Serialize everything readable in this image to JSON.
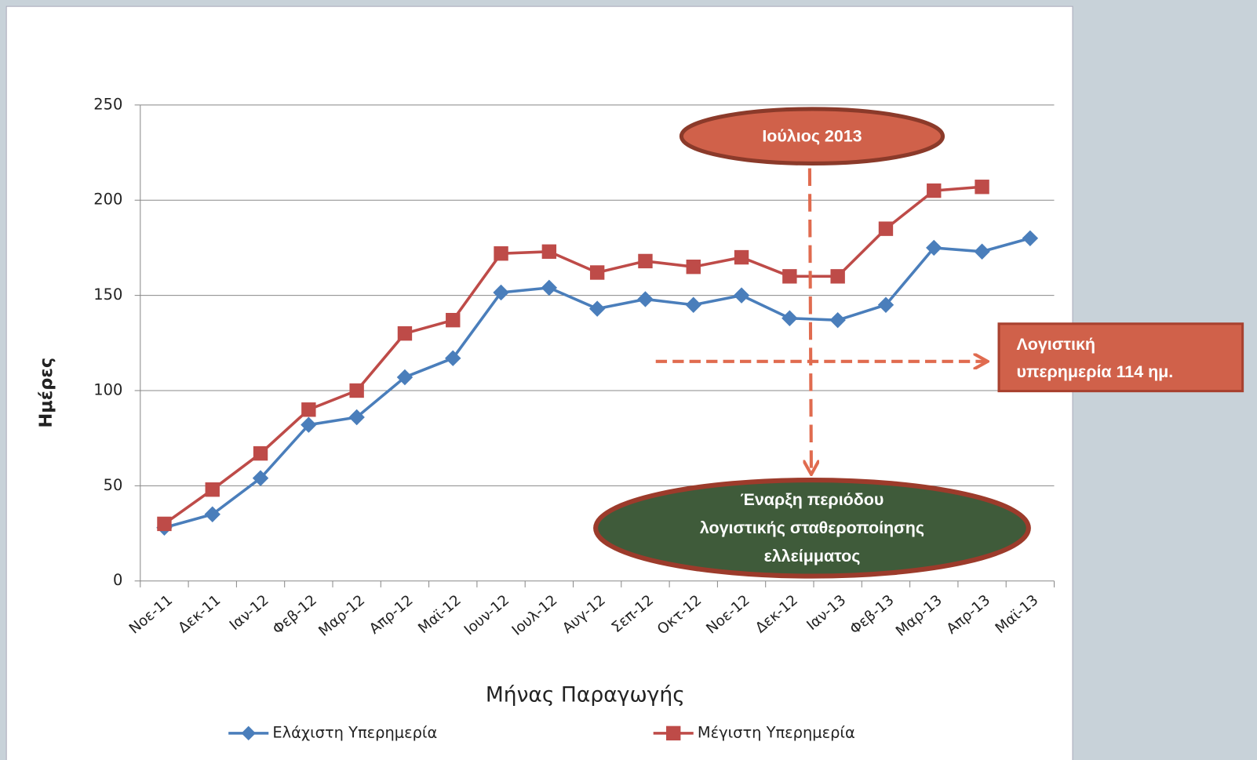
{
  "chart_data": {
    "type": "line",
    "y_label": "Ημέρες",
    "x_label": "Μήνας Παραγωγής",
    "categories": [
      "Νοε-11",
      "Δεκ-11",
      "Ιαν-12",
      "Φεβ-12",
      "Μαρ-12",
      "Απρ-12",
      "Μαϊ-12",
      "Ιουν-12",
      "Ιουλ-12",
      "Αυγ-12",
      "Σεπ-12",
      "Οκτ-12",
      "Νοε-12",
      "Δεκ-12",
      "Ιαν-13",
      "Φεβ-13",
      "Μαρ-13",
      "Απρ-13",
      "Μαϊ-13"
    ],
    "series": [
      {
        "name": "Ελάχιστη Υπερημερία",
        "color": "#4a7ebb",
        "marker": "diamond",
        "values": [
          28,
          35,
          54,
          82,
          86,
          107,
          117,
          151.5,
          154,
          143,
          148,
          145,
          150,
          138,
          137,
          145,
          175,
          173,
          180
        ]
      },
      {
        "name": "Μέγιστη Υπερημερία",
        "color": "#be4b48",
        "marker": "square",
        "values": [
          30,
          48,
          67,
          90,
          100,
          130,
          137,
          172,
          173,
          162,
          168,
          165,
          170,
          160,
          160,
          185,
          205,
          207,
          null
        ]
      }
    ],
    "ylim": [
      0,
      250
    ],
    "yticks": [
      0,
      50,
      100,
      150,
      200,
      250
    ],
    "grid": true,
    "annotations": {
      "july": "Ιούλιος 2013",
      "delay": [
        "Λογιστική",
        "υπερημερία 114 ημ."
      ],
      "start": [
        "Έναρξη περιόδου",
        "λογιστικής σταθεροποίησης",
        "ελλείμματος"
      ]
    }
  }
}
